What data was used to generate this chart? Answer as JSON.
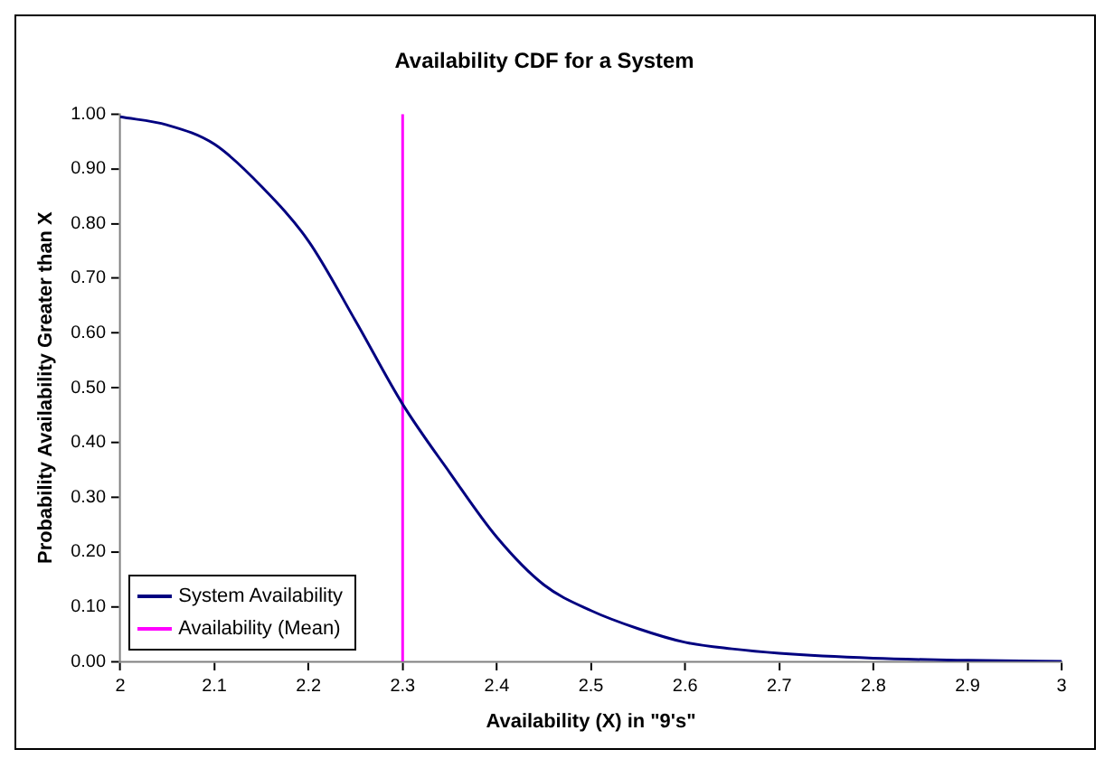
{
  "chart_data": {
    "type": "line",
    "title": "Availability CDF for a System",
    "xlabel": "Availability (X) in \"9's\"",
    "ylabel": "Probability Availability Greater than X",
    "x": [
      2.0,
      2.05,
      2.1,
      2.15,
      2.2,
      2.25,
      2.3,
      2.35,
      2.4,
      2.45,
      2.5,
      2.55,
      2.6,
      2.65,
      2.7,
      2.8,
      2.9,
      3.0
    ],
    "series": [
      {
        "name": "System Availability",
        "color": "#000080",
        "values": [
          0.995,
          0.98,
          0.945,
          0.868,
          0.768,
          0.622,
          0.47,
          0.345,
          0.227,
          0.14,
          0.093,
          0.06,
          0.035,
          0.023,
          0.015,
          0.006,
          0.002,
          0.0
        ]
      },
      {
        "name": "Availability (Mean)",
        "color": "#ff00ff",
        "x": [
          2.3,
          2.3
        ],
        "values": [
          0,
          1
        ]
      }
    ],
    "xlim": [
      2,
      3
    ],
    "xticks": [
      2,
      2.1,
      2.2,
      2.3,
      2.4,
      2.5,
      2.6,
      2.7,
      2.8,
      2.9,
      3
    ],
    "ylim": [
      0,
      1
    ],
    "yticks": [
      {
        "value": 0,
        "label": "0.00"
      },
      {
        "value": 0.1,
        "label": "0.10"
      },
      {
        "value": 0.2,
        "label": "0.20"
      },
      {
        "value": 0.3,
        "label": "0.30"
      },
      {
        "value": 0.4,
        "label": "0.40"
      },
      {
        "value": 0.5,
        "label": "0.50"
      },
      {
        "value": 0.6,
        "label": "0.60"
      },
      {
        "value": 0.7,
        "label": "0.70"
      },
      {
        "value": 0.8,
        "label": "0.80"
      },
      {
        "value": 0.9,
        "label": "0.90"
      },
      {
        "value": 1,
        "label": "1.00"
      }
    ],
    "grid": false,
    "legend": "bottom left",
    "marker": "none",
    "line_style": "solid"
  }
}
